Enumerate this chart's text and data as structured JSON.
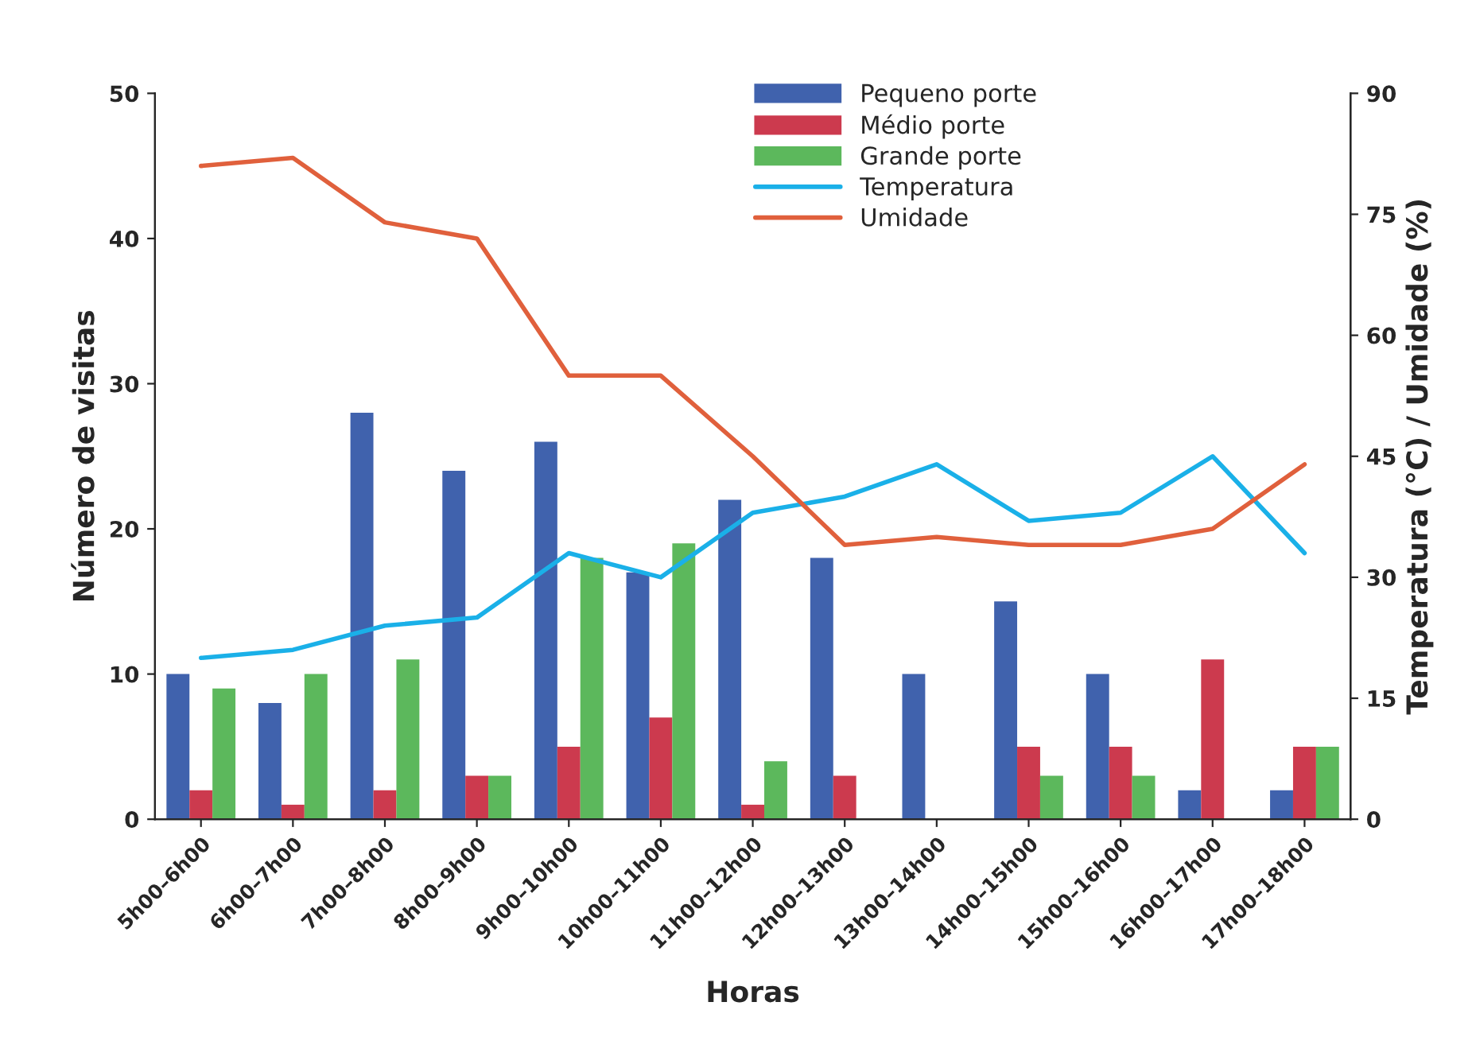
{
  "chart_data": {
    "type": "bar",
    "xlabel": "Horas",
    "ylabel": "Número de visitas",
    "y2label": "Temperatura (°C) / Umidade (%)",
    "categories": [
      "5h00–6h00",
      "6h00–7h00",
      "7h00–8h00",
      "8h00–9h00",
      "9h00–10h00",
      "10h00–11h00",
      "11h00–12h00",
      "12h00–13h00",
      "13h00–14h00",
      "14h00–15h00",
      "15h00–16h00",
      "16h00–17h00",
      "17h00–18h00"
    ],
    "series": [
      {
        "name": "Pequeno porte",
        "color": "#4062ad",
        "values": [
          10,
          8,
          28,
          24,
          26,
          17,
          22,
          18,
          10,
          15,
          10,
          2,
          2
        ]
      },
      {
        "name": "Médio porte",
        "color": "#cc3a4e",
        "values": [
          2,
          1,
          2,
          3,
          5,
          7,
          1,
          3,
          null,
          5,
          5,
          11,
          5
        ]
      },
      {
        "name": "Grande porte",
        "color": "#5cb85c",
        "values": [
          9,
          10,
          11,
          3,
          18,
          19,
          4,
          null,
          null,
          3,
          3,
          null,
          5
        ]
      },
      {
        "name": "Temperatura",
        "color": "#1ab0e8",
        "type": "line",
        "axis": "y2",
        "values": [
          20,
          21,
          24,
          25,
          33,
          30,
          38,
          40,
          44,
          37,
          38,
          45,
          33
        ]
      },
      {
        "name": "Umidade",
        "color": "#e0603c",
        "type": "line",
        "axis": "y2",
        "values": [
          81,
          82,
          74,
          72,
          55,
          55,
          45,
          34,
          35,
          34,
          34,
          36,
          44
        ]
      }
    ],
    "ylim": [
      0,
      50
    ],
    "yticks": [
      0,
      10,
      20,
      30,
      40,
      50
    ],
    "y2lim": [
      0,
      90
    ],
    "y2ticks": [
      0,
      15,
      30,
      45,
      60,
      75,
      90
    ],
    "legend": "top",
    "grid": false,
    "marker": "none",
    "line_style": "solid"
  }
}
